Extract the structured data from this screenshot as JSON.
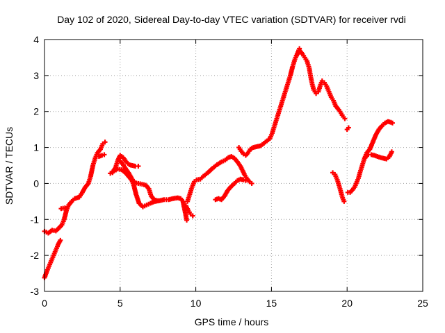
{
  "chart_data": {
    "type": "scatter",
    "title": "Day 102 of 2020, Sidereal Day-to-day VTEC variation (SDTVAR) for receiver rvdi",
    "xlabel": "GPS time / hours",
    "ylabel": "SDTVAR / TECUs",
    "xlim": [
      0,
      25
    ],
    "ylim": [
      -3,
      4
    ],
    "xticks": [
      "0",
      "5",
      "10",
      "15",
      "20",
      "25"
    ],
    "yticks": [
      "4",
      "3",
      "2",
      "1",
      "0",
      "-1",
      "-2",
      "-3"
    ],
    "grid": true,
    "marker": "plus",
    "color": "#ff0000",
    "series": [
      {
        "segments": [
          [
            [
              0.0,
              -1.33
            ],
            [
              0.25,
              -1.38
            ],
            [
              0.5,
              -1.3
            ],
            [
              0.75,
              -1.32
            ],
            [
              1.0,
              -1.22
            ],
            [
              1.15,
              -1.15
            ],
            [
              1.3,
              -1.0
            ],
            [
              1.45,
              -0.75
            ],
            [
              1.6,
              -0.6
            ],
            [
              1.8,
              -0.5
            ],
            [
              2.0,
              -0.42
            ],
            [
              2.3,
              -0.38
            ],
            [
              2.5,
              -0.25
            ],
            [
              2.7,
              -0.1
            ],
            [
              2.9,
              0.0
            ],
            [
              3.05,
              0.2
            ],
            [
              3.2,
              0.5
            ],
            [
              3.35,
              0.7
            ],
            [
              3.5,
              0.85
            ],
            [
              3.7,
              0.95
            ],
            [
              3.85,
              1.1
            ],
            [
              4.0,
              1.15
            ]
          ],
          [
            [
              0.0,
              -2.62
            ],
            [
              0.15,
              -2.45
            ],
            [
              0.3,
              -2.3
            ],
            [
              0.45,
              -2.15
            ],
            [
              0.6,
              -2.0
            ],
            [
              0.75,
              -1.85
            ],
            [
              0.9,
              -1.7
            ],
            [
              1.05,
              -1.58
            ]
          ],
          [
            [
              1.1,
              -0.7
            ],
            [
              1.35,
              -0.68
            ]
          ],
          [
            [
              3.6,
              0.75
            ],
            [
              3.8,
              0.78
            ],
            [
              3.95,
              0.8
            ]
          ],
          [
            [
              4.35,
              0.28
            ],
            [
              4.6,
              0.35
            ],
            [
              4.85,
              0.4
            ],
            [
              5.1,
              0.38
            ],
            [
              5.35,
              0.3
            ],
            [
              5.55,
              0.2
            ],
            [
              5.75,
              0.1
            ],
            [
              5.9,
              -0.05
            ],
            [
              6.05,
              -0.3
            ],
            [
              6.25,
              -0.55
            ],
            [
              6.5,
              -0.65
            ],
            [
              6.75,
              -0.6
            ],
            [
              7.0,
              -0.55
            ],
            [
              7.3,
              -0.5
            ],
            [
              7.6,
              -0.48
            ],
            [
              7.9,
              -0.45
            ],
            [
              8.2,
              -0.45
            ],
            [
              8.5,
              -0.42
            ],
            [
              8.8,
              -0.4
            ],
            [
              9.0,
              -0.42
            ],
            [
              9.15,
              -0.5
            ],
            [
              9.3,
              -0.8
            ],
            [
              9.4,
              -1.02
            ]
          ],
          [
            [
              4.5,
              0.3
            ],
            [
              4.7,
              0.45
            ],
            [
              4.85,
              0.65
            ],
            [
              5.0,
              0.78
            ],
            [
              5.2,
              0.72
            ],
            [
              5.4,
              0.6
            ],
            [
              5.6,
              0.52
            ],
            [
              5.8,
              0.5
            ],
            [
              6.0,
              0.48
            ],
            [
              6.2,
              0.48
            ]
          ],
          [
            [
              5.0,
              0.62
            ],
            [
              5.15,
              0.55
            ],
            [
              5.35,
              0.42
            ],
            [
              5.55,
              0.3
            ],
            [
              5.75,
              0.15
            ],
            [
              5.95,
              0.02
            ],
            [
              6.2,
              0.0
            ],
            [
              6.45,
              -0.02
            ],
            [
              6.7,
              -0.05
            ],
            [
              6.9,
              -0.15
            ],
            [
              7.05,
              -0.35
            ],
            [
              7.25,
              -0.45
            ],
            [
              7.5,
              -0.48
            ]
          ],
          [
            [
              9.35,
              -0.62
            ],
            [
              9.5,
              -0.75
            ],
            [
              9.65,
              -0.85
            ],
            [
              9.8,
              -0.9
            ]
          ],
          [
            [
              9.45,
              -0.5
            ],
            [
              9.6,
              -0.3
            ],
            [
              9.75,
              -0.1
            ],
            [
              9.9,
              0.05
            ],
            [
              10.05,
              0.1
            ],
            [
              10.3,
              0.12
            ],
            [
              10.5,
              0.2
            ],
            [
              10.8,
              0.3
            ],
            [
              11.1,
              0.42
            ],
            [
              11.4,
              0.52
            ],
            [
              11.7,
              0.6
            ],
            [
              11.95,
              0.65
            ],
            [
              12.15,
              0.72
            ],
            [
              12.35,
              0.75
            ],
            [
              12.55,
              0.7
            ],
            [
              12.75,
              0.6
            ],
            [
              12.95,
              0.48
            ],
            [
              13.1,
              0.35
            ],
            [
              13.25,
              0.22
            ],
            [
              13.4,
              0.12
            ],
            [
              13.55,
              0.05
            ],
            [
              13.7,
              0.0
            ]
          ],
          [
            [
              11.3,
              -0.45
            ],
            [
              11.5,
              -0.42
            ],
            [
              11.7,
              -0.45
            ],
            [
              11.9,
              -0.35
            ],
            [
              12.1,
              -0.2
            ],
            [
              12.3,
              -0.1
            ],
            [
              12.55,
              0.0
            ],
            [
              12.75,
              0.08
            ],
            [
              12.95,
              0.12
            ],
            [
              13.15,
              0.1
            ],
            [
              13.3,
              0.08
            ]
          ],
          [
            [
              12.85,
              1.0
            ],
            [
              13.0,
              0.9
            ],
            [
              13.15,
              0.82
            ],
            [
              13.3,
              0.78
            ],
            [
              13.45,
              0.85
            ],
            [
              13.6,
              0.95
            ],
            [
              13.8,
              1.0
            ],
            [
              14.0,
              1.02
            ],
            [
              14.3,
              1.05
            ],
            [
              14.6,
              1.15
            ],
            [
              14.9,
              1.25
            ],
            [
              15.05,
              1.4
            ],
            [
              15.2,
              1.6
            ],
            [
              15.35,
              1.8
            ],
            [
              15.5,
              2.0
            ],
            [
              15.65,
              2.2
            ],
            [
              15.8,
              2.4
            ],
            [
              15.95,
              2.6
            ],
            [
              16.1,
              2.8
            ],
            [
              16.25,
              3.0
            ],
            [
              16.4,
              3.25
            ],
            [
              16.55,
              3.45
            ],
            [
              16.7,
              3.6
            ],
            [
              16.85,
              3.75
            ]
          ],
          [
            [
              16.65,
              3.55
            ],
            [
              16.85,
              3.7
            ],
            [
              17.05,
              3.6
            ],
            [
              17.2,
              3.5
            ],
            [
              17.35,
              3.4
            ],
            [
              17.5,
              3.2
            ],
            [
              17.6,
              2.95
            ],
            [
              17.7,
              2.75
            ],
            [
              17.8,
              2.6
            ],
            [
              17.95,
              2.5
            ],
            [
              18.1,
              2.55
            ],
            [
              18.25,
              2.75
            ],
            [
              18.35,
              2.85
            ],
            [
              18.5,
              2.8
            ],
            [
              18.65,
              2.7
            ],
            [
              18.8,
              2.55
            ],
            [
              18.95,
              2.4
            ],
            [
              19.1,
              2.3
            ],
            [
              19.25,
              2.15
            ],
            [
              19.45,
              2.05
            ],
            [
              19.6,
              1.95
            ],
            [
              19.75,
              1.85
            ],
            [
              19.85,
              1.8
            ]
          ],
          [
            [
              20.0,
              1.5
            ],
            [
              20.1,
              1.55
            ]
          ],
          [
            [
              19.05,
              0.3
            ],
            [
              19.2,
              0.25
            ],
            [
              19.35,
              0.1
            ],
            [
              19.5,
              -0.1
            ],
            [
              19.6,
              -0.25
            ],
            [
              19.7,
              -0.4
            ],
            [
              19.8,
              -0.5
            ]
          ],
          [
            [
              20.05,
              -0.25
            ],
            [
              20.2,
              -0.25
            ],
            [
              20.35,
              -0.18
            ],
            [
              20.5,
              -0.1
            ],
            [
              20.6,
              0.0
            ],
            [
              20.75,
              0.15
            ],
            [
              20.85,
              0.3
            ],
            [
              21.0,
              0.5
            ],
            [
              21.15,
              0.7
            ],
            [
              21.3,
              0.85
            ],
            [
              21.5,
              0.95
            ],
            [
              21.7,
              1.15
            ],
            [
              21.9,
              1.35
            ],
            [
              22.1,
              1.5
            ],
            [
              22.3,
              1.6
            ],
            [
              22.5,
              1.68
            ],
            [
              22.7,
              1.72
            ],
            [
              22.9,
              1.7
            ],
            [
              23.0,
              1.68
            ]
          ],
          [
            [
              21.2,
              0.72
            ],
            [
              21.4,
              0.8
            ],
            [
              21.6,
              0.8
            ],
            [
              21.8,
              0.78
            ],
            [
              22.0,
              0.75
            ],
            [
              22.2,
              0.72
            ],
            [
              22.4,
              0.7
            ],
            [
              22.6,
              0.68
            ],
            [
              22.8,
              0.75
            ],
            [
              22.95,
              0.88
            ]
          ]
        ]
      }
    ]
  }
}
